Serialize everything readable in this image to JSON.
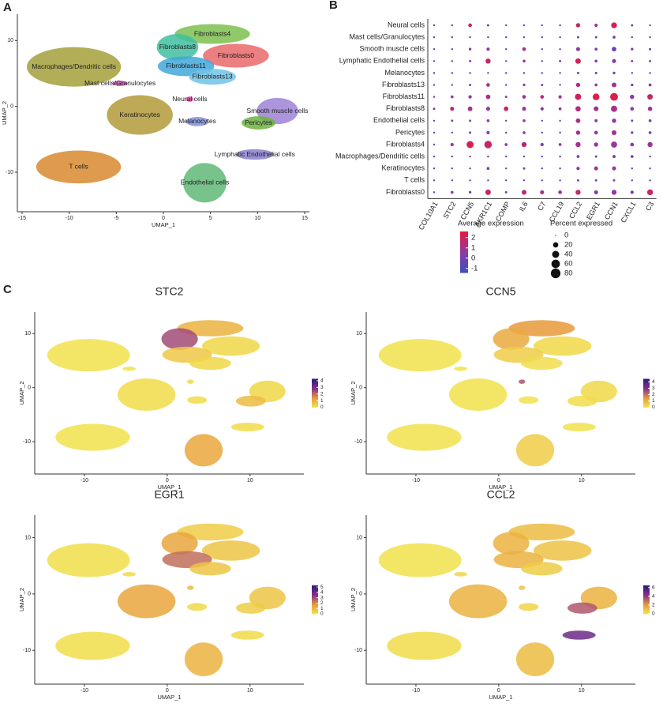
{
  "chart_data": [
    {
      "type": "umap",
      "panel": "A",
      "xlabel": "UMAP_1",
      "ylabel": "UMAP_2",
      "xlim": [
        -15.5,
        15.5
      ],
      "ylim": [
        -16,
        14
      ],
      "xticks": [
        -15,
        -10,
        -5,
        0,
        5,
        10,
        15
      ],
      "yticks": [
        -10,
        0,
        10
      ],
      "clusters": [
        {
          "name": "Fibroblasts0",
          "color": "#e8696b",
          "x": 7.7,
          "y": 7.7,
          "sx": 3.5,
          "sy": 1.8
        },
        {
          "name": "Fibroblasts4",
          "color": "#7cbf4f",
          "x": 5.2,
          "y": 11,
          "sx": 4,
          "sy": 1.5
        },
        {
          "name": "Fibroblasts8",
          "color": "#3fbfa0",
          "x": 1.5,
          "y": 9,
          "sx": 2.2,
          "sy": 2
        },
        {
          "name": "Fibroblasts11",
          "color": "#41a7d9",
          "x": 2.4,
          "y": 6.1,
          "sx": 3,
          "sy": 1.5
        },
        {
          "name": "Fibroblasts13",
          "color": "#6ec3e9",
          "x": 5.2,
          "y": 4.5,
          "sx": 2.5,
          "sy": 1.2
        },
        {
          "name": "Macrophages/Dendritic cells",
          "color": "#a3a03a",
          "x": -9.5,
          "y": 6,
          "sx": 5,
          "sy": 3
        },
        {
          "name": "Mast cells/Granulocytes",
          "color": "#c14bb0",
          "x": -4.6,
          "y": 3.5,
          "sx": 0.8,
          "sy": 0.4
        },
        {
          "name": "Keratinocytes",
          "color": "#b39a3a",
          "x": -2.5,
          "y": -1.3,
          "sx": 3.5,
          "sy": 3
        },
        {
          "name": "Neural cells",
          "color": "#e34cab",
          "x": 2.8,
          "y": 1.1,
          "sx": 0.4,
          "sy": 0.4
        },
        {
          "name": "Melanocytes",
          "color": "#7f8fd6",
          "x": 3.6,
          "y": -2.3,
          "sx": 1.2,
          "sy": 0.7
        },
        {
          "name": "Smooth muscle cells",
          "color": "#9e82d6",
          "x": 12.1,
          "y": -0.7,
          "sx": 2.2,
          "sy": 2
        },
        {
          "name": "Pericytes",
          "color": "#6db340",
          "x": 10.1,
          "y": -2.5,
          "sx": 1.8,
          "sy": 1
        },
        {
          "name": "T cells",
          "color": "#d88a2e",
          "x": -9,
          "y": -9.2,
          "sx": 4.5,
          "sy": 2.5
        },
        {
          "name": "Endothelial cells",
          "color": "#5fb877",
          "x": 4.4,
          "y": -11.6,
          "sx": 2.3,
          "sy": 3
        },
        {
          "name": "Lymphatic Endothelial cells",
          "color": "#8a7fd0",
          "x": 9.7,
          "y": -7.3,
          "sx": 2,
          "sy": 0.8
        }
      ]
    },
    {
      "type": "dotplot",
      "panel": "B",
      "categories": [
        "COL10A1",
        "STC2",
        "CCN5",
        "AKR1C1",
        "COMP",
        "IL6",
        "C7",
        "CCL19",
        "CCL2",
        "EGR1",
        "CCN1",
        "CXCL1",
        "C3"
      ],
      "rows": [
        "Neural cells",
        "Mast cells/Granulocytes",
        "Smooth muscle cells",
        "Lymphatic Endothelial cells",
        "Melanocytes",
        "Fibroblasts13",
        "Fibroblasts11",
        "Fibroblasts8",
        "Endothelial cells",
        "Pericytes",
        "Fibroblasts4",
        "Macrophages/Dendritic cells",
        "Keratinocytes",
        "T cells",
        "Fibroblasts0"
      ],
      "pct": [
        [
          1,
          1,
          8,
          2,
          1,
          1,
          1,
          1,
          12,
          6,
          25,
          2,
          1
        ],
        [
          1,
          1,
          1,
          1,
          1,
          1,
          1,
          1,
          2,
          2,
          4,
          1,
          1
        ],
        [
          1,
          1,
          3,
          6,
          1,
          8,
          1,
          1,
          10,
          4,
          14,
          3,
          2
        ],
        [
          1,
          1,
          2,
          18,
          1,
          4,
          1,
          2,
          22,
          4,
          10,
          2,
          2
        ],
        [
          1,
          1,
          1,
          1,
          1,
          1,
          1,
          1,
          2,
          2,
          3,
          1,
          1
        ],
        [
          1,
          1,
          2,
          8,
          1,
          3,
          2,
          1,
          12,
          4,
          16,
          3,
          4
        ],
        [
          1,
          4,
          6,
          14,
          2,
          8,
          8,
          6,
          30,
          35,
          50,
          12,
          22
        ],
        [
          2,
          10,
          14,
          10,
          14,
          10,
          6,
          4,
          20,
          16,
          30,
          8,
          12
        ],
        [
          1,
          2,
          2,
          4,
          1,
          4,
          1,
          1,
          14,
          5,
          12,
          2,
          4
        ],
        [
          1,
          1,
          2,
          6,
          1,
          4,
          1,
          1,
          12,
          8,
          16,
          3,
          4
        ],
        [
          1,
          6,
          40,
          45,
          4,
          18,
          6,
          4,
          18,
          12,
          28,
          8,
          18
        ],
        [
          1,
          1,
          1,
          1,
          1,
          1,
          1,
          1,
          4,
          2,
          5,
          4,
          1
        ],
        [
          1,
          1,
          1,
          4,
          1,
          2,
          1,
          1,
          6,
          10,
          10,
          1,
          1
        ],
        [
          1,
          1,
          1,
          1,
          1,
          1,
          1,
          1,
          2,
          2,
          2,
          1,
          1
        ],
        [
          1,
          4,
          3,
          22,
          2,
          16,
          10,
          8,
          18,
          10,
          18,
          6,
          25
        ]
      ],
      "avg": [
        [
          -0.5,
          -0.5,
          1.8,
          0,
          -0.5,
          -0.5,
          -0.5,
          -0.5,
          1.8,
          0.8,
          2.2,
          0,
          -0.5
        ],
        [
          -0.5,
          -0.5,
          -0.5,
          -0.5,
          -0.5,
          -0.5,
          -0.5,
          -0.5,
          -0.3,
          -0.3,
          0,
          -0.5,
          -0.5
        ],
        [
          -0.5,
          -0.5,
          0,
          0.5,
          -0.5,
          1.2,
          -0.5,
          -0.5,
          0.5,
          0,
          -0.3,
          0,
          -0.3
        ],
        [
          -0.5,
          -0.5,
          0,
          2,
          -0.5,
          0.5,
          -0.5,
          0,
          2.2,
          0,
          0.3,
          0,
          0
        ],
        [
          -0.5,
          -0.5,
          -0.5,
          -0.5,
          -0.5,
          -0.5,
          -0.5,
          -0.5,
          -0.3,
          -0.3,
          -0.3,
          -0.5,
          -0.5
        ],
        [
          -0.5,
          -0.5,
          0,
          1.2,
          -0.5,
          0,
          0,
          -0.5,
          1.2,
          0.5,
          1,
          0,
          0.3
        ],
        [
          -0.5,
          0.5,
          0.5,
          1.2,
          0,
          1,
          1.5,
          1,
          2,
          2.3,
          2.3,
          0.5,
          1.8
        ],
        [
          0,
          1.8,
          1.2,
          0.5,
          2,
          0.8,
          0.5,
          0.3,
          1.5,
          1,
          1.2,
          0.5,
          1
        ],
        [
          -0.5,
          0.3,
          0,
          0.3,
          -0.5,
          0.3,
          -0.5,
          -0.5,
          1.3,
          0,
          0.5,
          0,
          0
        ],
        [
          -0.5,
          -0.5,
          0,
          0.5,
          -0.5,
          0.3,
          -0.5,
          -0.5,
          1,
          0.5,
          1,
          0,
          0
        ],
        [
          -0.5,
          1,
          2.2,
          1.8,
          0.5,
          1.5,
          0.5,
          0.5,
          1,
          0.8,
          0.8,
          0.3,
          1
        ],
        [
          -0.5,
          -0.5,
          -0.5,
          -0.5,
          -0.5,
          -0.5,
          -0.5,
          -0.5,
          0,
          -0.5,
          0,
          0,
          -0.5
        ],
        [
          -0.5,
          -0.5,
          -0.5,
          0,
          -0.5,
          0,
          -0.5,
          -0.5,
          0.5,
          1,
          0.8,
          -0.5,
          -0.5
        ],
        [
          -0.5,
          -0.5,
          -0.5,
          -0.5,
          -0.5,
          -0.5,
          -0.5,
          -0.5,
          -0.3,
          -0.3,
          -0.3,
          -0.5,
          -0.5
        ],
        [
          -0.5,
          0.5,
          0,
          1.8,
          0,
          1.5,
          1.2,
          1,
          1.8,
          0.5,
          0.8,
          0.3,
          2
        ]
      ],
      "color_title": "Average expression",
      "clim": [
        -1.4,
        2.6
      ],
      "colors": [
        "#3f4dbe",
        "#8e3aa6",
        "#e8193c"
      ],
      "cticks": [
        2,
        1,
        0,
        -1
      ],
      "size_title": "Percent expressed",
      "size_ticks": [
        0,
        20,
        40,
        60,
        80
      ]
    },
    {
      "type": "feature",
      "panel": "C",
      "title": "STC2",
      "xlabel": "UMAP_1",
      "ylabel": "UMAP_2",
      "xlim": [
        -16,
        16.5
      ],
      "ylim": [
        -16,
        14
      ],
      "xticks": [
        -10,
        0,
        10
      ],
      "yticks": [
        -10,
        0,
        10
      ],
      "values": [
        0.3,
        1,
        2.5,
        0.6,
        0.3,
        0.1,
        0.1,
        0.2,
        0.3,
        0.2,
        0.3,
        0.8,
        0.1,
        1.2,
        0.2
      ],
      "clim": [
        0,
        4.3
      ],
      "cticks": [
        0,
        1,
        2,
        3,
        4
      ],
      "colors": [
        "#f2e74c",
        "#e89a3a",
        "#8a2f8c",
        "#2a1e7c"
      ]
    },
    {
      "type": "feature",
      "title": "CCN5",
      "xlabel": "UMAP_1",
      "ylabel": "UMAP_2",
      "xlim": [
        -16,
        16.5
      ],
      "ylim": [
        -16,
        14
      ],
      "xticks": [
        -10,
        0,
        10
      ],
      "yticks": [
        -10,
        0,
        10
      ],
      "values": [
        0.3,
        1.5,
        1.2,
        0.5,
        0.2,
        0.1,
        0.1,
        0.1,
        2.5,
        0.1,
        0.3,
        0.2,
        0.1,
        0.5,
        0.1
      ],
      "clim": [
        0,
        4.5
      ],
      "cticks": [
        0,
        1,
        2,
        3,
        4
      ],
      "colors": [
        "#f2e74c",
        "#e89a3a",
        "#8a2f8c",
        "#2a1e7c"
      ]
    },
    {
      "type": "feature",
      "title": "EGR1",
      "xlabel": "UMAP_1",
      "ylabel": "UMAP_2",
      "xlim": [
        -16,
        16.5
      ],
      "ylim": [
        -16,
        14
      ],
      "xticks": [
        -10,
        0,
        10
      ],
      "yticks": [
        -10,
        0,
        10
      ],
      "values": [
        0.8,
        0.6,
        1.5,
        2.5,
        0.8,
        0.2,
        0.3,
        1.5,
        1,
        0.3,
        0.8,
        0.6,
        0.2,
        1.2,
        0.3
      ],
      "clim": [
        0,
        5.3
      ],
      "cticks": [
        0,
        1,
        2,
        3,
        4,
        5
      ],
      "colors": [
        "#f2e74c",
        "#e89a3a",
        "#8a2f8c",
        "#2a1e7c"
      ]
    },
    {
      "type": "feature",
      "title": "CCL2",
      "xlabel": "UMAP_1",
      "ylabel": "UMAP_2",
      "xlim": [
        -16,
        16.5
      ],
      "ylim": [
        -16,
        14
      ],
      "xticks": [
        -10,
        0,
        10
      ],
      "yticks": [
        -10,
        0,
        10
      ],
      "values": [
        1,
        1.2,
        1.5,
        1.5,
        0.8,
        0.2,
        0.5,
        1.5,
        1,
        0.5,
        1.5,
        3.5,
        0.3,
        1.2,
        5
      ],
      "clim": [
        0,
        6.5
      ],
      "cticks": [
        0,
        2,
        4,
        6
      ],
      "colors": [
        "#f2e74c",
        "#e89a3a",
        "#8a2f8c",
        "#2a1e7c"
      ]
    }
  ]
}
